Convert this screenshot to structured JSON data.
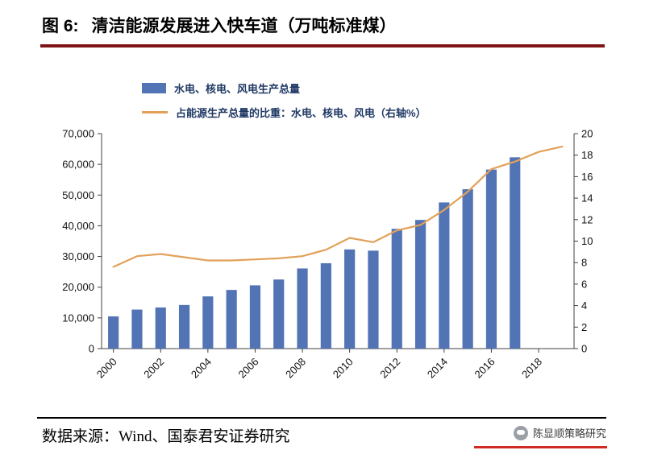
{
  "header": {
    "figure_label": "图 6:",
    "title": "清洁能源发展进入快车道（万吨标准煤）"
  },
  "legend": {
    "bar_label": "水电、核电、风电生产总量",
    "line_label": "占能源生产总量的比重：水电、核电、风电（右轴%）"
  },
  "chart_data": {
    "type": "bar",
    "title": "清洁能源发展进入快车道（万吨标准煤）",
    "grid": "off",
    "legend_position": "top",
    "x_tick_labels": [
      "2000",
      "2002",
      "2004",
      "2006",
      "2008",
      "2010",
      "2012",
      "2014",
      "2016",
      "2018"
    ],
    "left_axis": {
      "min": 0,
      "max": 70000,
      "step": 10000,
      "label_format": "thousands-comma"
    },
    "right_axis": {
      "min": 0,
      "max": 20,
      "step": 2
    },
    "bar_series": {
      "name": "水电、核电、风电生产总量",
      "axis": "left",
      "years": [
        2000,
        2001,
        2002,
        2003,
        2004,
        2005,
        2006,
        2007,
        2008,
        2009,
        2010,
        2011,
        2012,
        2013,
        2014,
        2015,
        2016,
        2017
      ],
      "values": [
        10500,
        12700,
        13400,
        14200,
        17000,
        19100,
        20600,
        22500,
        26100,
        27800,
        32300,
        31900,
        39000,
        41900,
        47600,
        51900,
        58300,
        62300
      ]
    },
    "line_series": {
      "name": "占能源生产总量的比重：水电、核电、风电（右轴%）",
      "axis": "right",
      "years": [
        2000,
        2001,
        2002,
        2003,
        2004,
        2005,
        2006,
        2007,
        2008,
        2009,
        2010,
        2011,
        2012,
        2013,
        2014,
        2015,
        2016,
        2017,
        2018,
        2019
      ],
      "values": [
        7.6,
        8.6,
        8.8,
        8.5,
        8.2,
        8.2,
        8.3,
        8.4,
        8.6,
        9.2,
        10.3,
        9.9,
        11.0,
        11.5,
        12.9,
        14.6,
        16.7,
        17.4,
        18.3,
        18.8
      ]
    }
  },
  "footer": {
    "source": "数据来源：Wind、国泰君安证券研究",
    "watermark": "陈显顺策略研究"
  },
  "colors": {
    "bar": "#5273B4",
    "line": "#E2A159",
    "title_rule": "#7E1416",
    "footer_rule": "#000000",
    "watermark_rule": "#D02A22",
    "axis": "#404040",
    "axis_text": "#111111"
  }
}
